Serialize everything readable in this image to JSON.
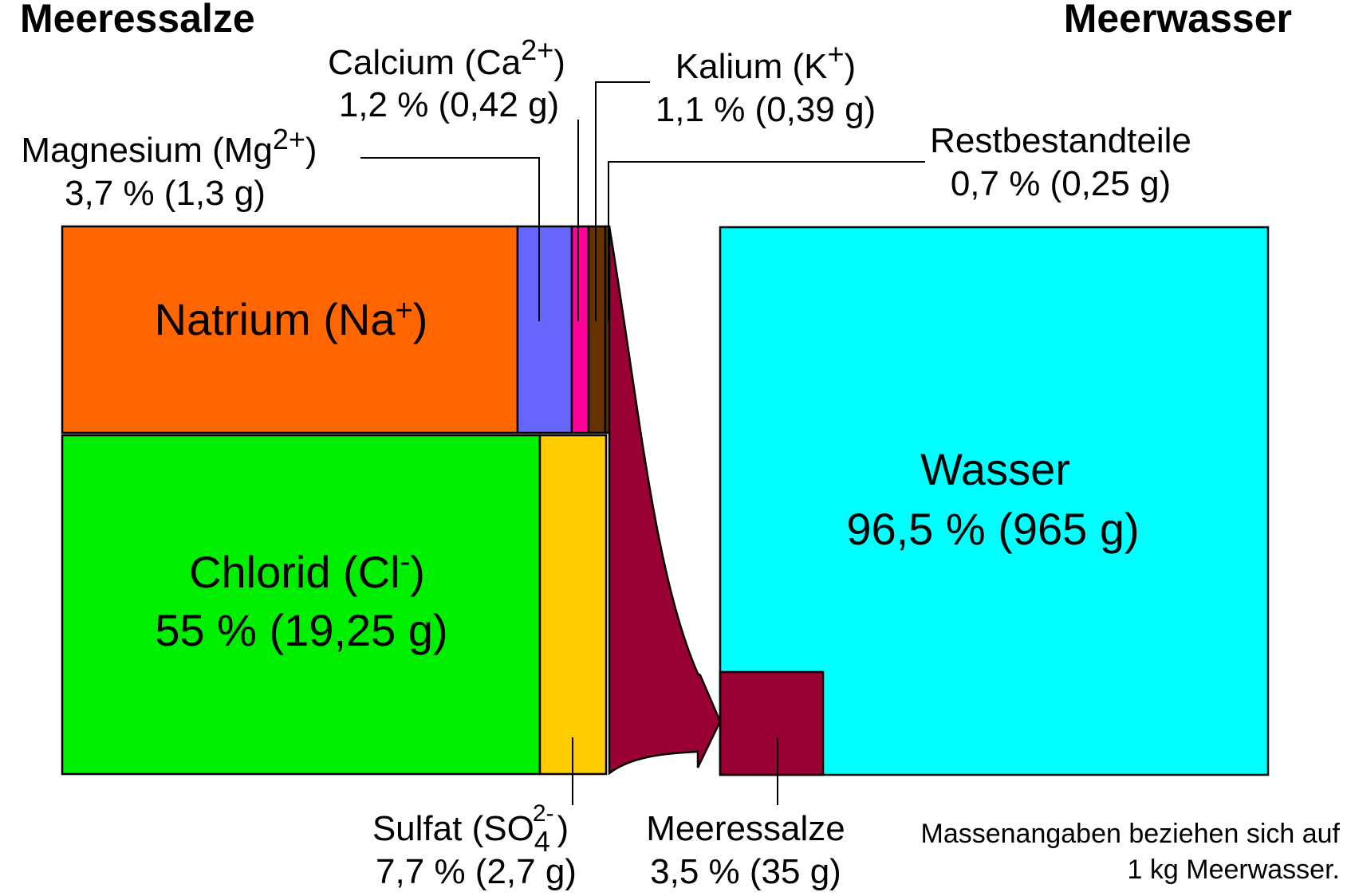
{
  "headings": {
    "left": "Meeressalze",
    "right": "Meerwasser"
  },
  "components": {
    "natrium": {
      "name": "Natrium (Na",
      "sup": "+",
      "close": ")",
      "color": "#ff6600"
    },
    "chlorid": {
      "name": "Chlorid (Cl",
      "sup": "-",
      "close": ")",
      "value": "55 % (19,25 g)",
      "color": "#00ee00"
    },
    "magnesium": {
      "name": "Magnesium (Mg",
      "sup": "2+",
      "close": ")",
      "value": "3,7 % (1,3 g)",
      "color": "#6666ff"
    },
    "calcium": {
      "name": "Calcium (Ca",
      "sup": "2+",
      "close": ")",
      "value": "1,2 % (0,42 g)",
      "color": "#ff0099"
    },
    "kalium": {
      "name": "Kalium (K",
      "sup": "+",
      "close": ")",
      "value": "1,1 % (0,39 g)",
      "color": "#663300"
    },
    "rest": {
      "name": "Restbestandteile",
      "value": "0,7 % (0,25 g)",
      "color": "#663300"
    },
    "sulfat": {
      "name": "Sulfat (SO",
      "sub": "4",
      "sup": "2-",
      "close": ")",
      "value": "7,7 % (2,7 g)",
      "color": "#ffcc00"
    },
    "wasser": {
      "name": "Wasser",
      "value": "96,5 % (965 g)",
      "color": "#00ffff"
    },
    "meeressalze": {
      "name": "Meeressalze",
      "value": "3,5 % (35 g)",
      "color": "#990033"
    }
  },
  "note": {
    "line1": "Massenangaben beziehen sich auf",
    "line2": "1 kg Meerwasser."
  }
}
